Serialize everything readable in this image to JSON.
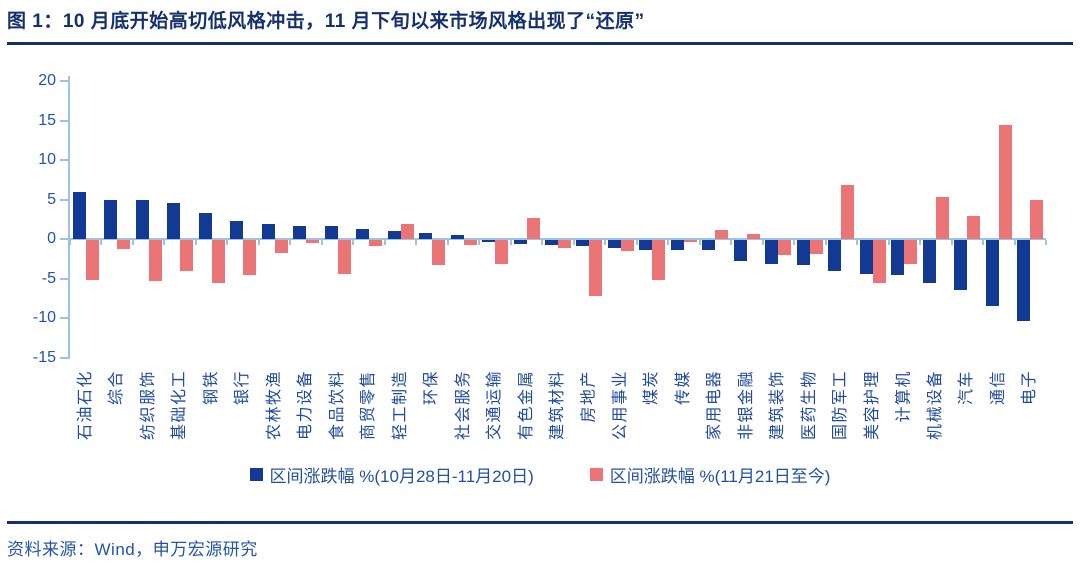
{
  "header": {
    "title": "图 1：10 月底开始高切低风格冲击，11 月下旬以来市场风格出现了“还原”"
  },
  "chart_data": {
    "type": "bar",
    "categories": [
      "石油石化",
      "综合",
      "纺织服饰",
      "基础化工",
      "钢铁",
      "银行",
      "农林牧渔",
      "电力设备",
      "食品饮料",
      "商贸零售",
      "轻工制造",
      "环保",
      "社会服务",
      "交通运输",
      "有色金属",
      "建筑材料",
      "房地产",
      "公用事业",
      "煤炭",
      "传媒",
      "家用电器",
      "非银金融",
      "建筑装饰",
      "医药生物",
      "国防军工",
      "美容护理",
      "计算机",
      "机械设备",
      "汽车",
      "通信",
      "电子"
    ],
    "series": [
      {
        "name": "区间涨跌幅 %(10月28日-11月20日)",
        "color": "#123A94",
        "values": [
          5.9,
          5.0,
          4.9,
          4.6,
          3.3,
          2.3,
          1.9,
          1.7,
          1.6,
          1.3,
          1.0,
          0.7,
          0.5,
          -0.3,
          -0.5,
          -0.6,
          -0.7,
          -1.0,
          -1.3,
          -1.3,
          -1.3,
          -2.6,
          -3.0,
          -3.2,
          -3.9,
          -4.3,
          -4.4,
          -5.5,
          -6.3,
          -8.3,
          -10.3
        ]
      },
      {
        "name": "区间涨跌幅 %(11月21日至今)",
        "color": "#EB7476",
        "values": [
          -5.1,
          -1.2,
          -5.2,
          -3.9,
          -5.5,
          -4.4,
          -1.6,
          -0.4,
          -4.3,
          -0.7,
          1.9,
          -3.2,
          -0.6,
          -3.0,
          2.6,
          -1.0,
          -7.1,
          -1.4,
          -5.1,
          -0.2,
          1.1,
          0.6,
          -1.9,
          -1.8,
          6.8,
          -5.5,
          -3.1,
          5.3,
          2.9,
          14.4,
          5.0
        ]
      }
    ],
    "title": "",
    "xlabel": "",
    "ylabel": "",
    "ylim": [
      -15,
      20
    ],
    "yticks": [
      20,
      15,
      10,
      5,
      0,
      -5,
      -10,
      -15
    ],
    "grid": "off",
    "legend_position": "bottom",
    "axis_color": "#9CC2E5",
    "ytick_label_color": "#2254A8",
    "xtick_label_color": "#1F4BA0"
  },
  "footer": {
    "source": "资料来源：Wind，申万宏源研究"
  }
}
